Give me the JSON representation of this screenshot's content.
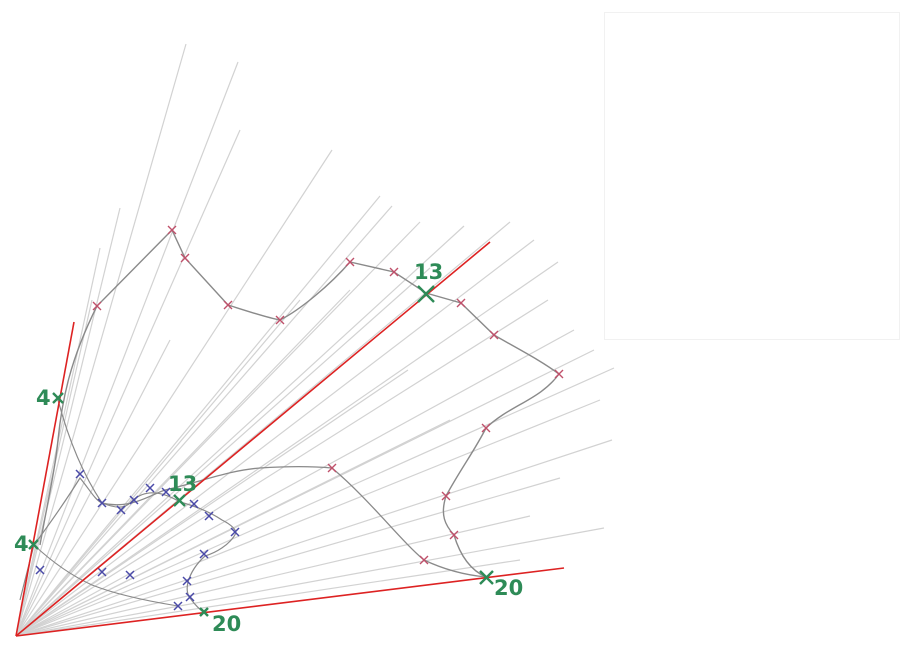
{
  "labels": {
    "upper_13": "13",
    "upper_4": "4",
    "upper_20": "20",
    "lower_13": "13",
    "lower_4": "4",
    "lower_20": "20"
  },
  "colors": {
    "reference_line": "#dd2222",
    "highlight": "#2e8b57",
    "ray": "#cfcfcf",
    "contour": "#8a8a8a",
    "upper_mark": "#c0506a",
    "lower_mark": "#4a4aa8"
  }
}
